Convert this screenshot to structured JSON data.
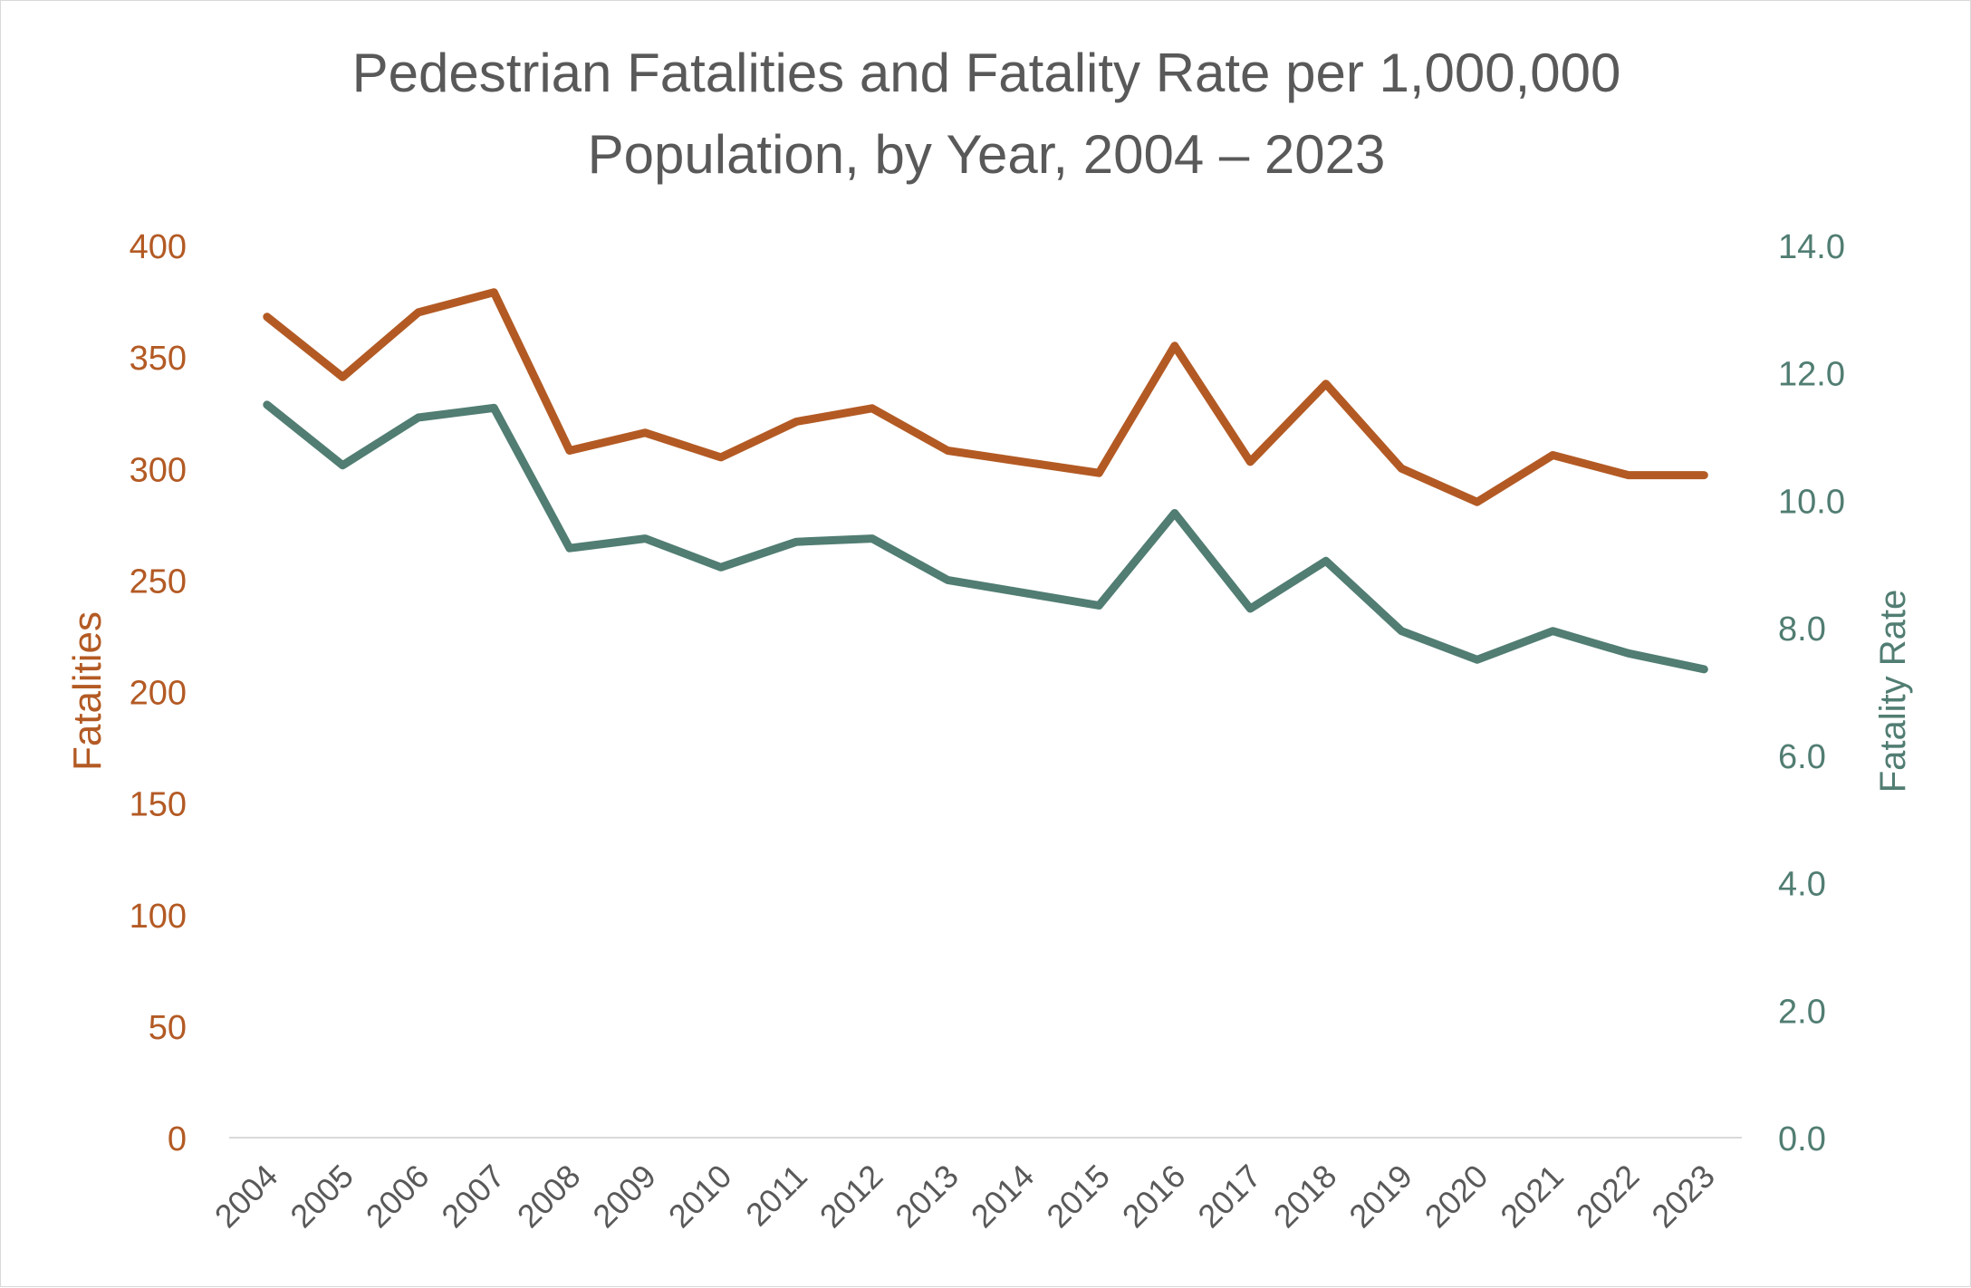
{
  "chart_data": {
    "type": "line",
    "title_lines": [
      "Pedestrian Fatalities and Fatality Rate per 1,000,000",
      "Population, by Year, 2004 – 2023"
    ],
    "categories": [
      "2004",
      "2005",
      "2006",
      "2007",
      "2008",
      "2009",
      "2010",
      "2011",
      "2012",
      "2013",
      "2014",
      "2015",
      "2016",
      "2017",
      "2018",
      "2019",
      "2020",
      "2021",
      "2022",
      "2023"
    ],
    "y_left": {
      "label": "Fatalities",
      "range": [
        0,
        400
      ],
      "ticks": [
        "0",
        "50",
        "100",
        "150",
        "200",
        "250",
        "300",
        "350",
        "400"
      ],
      "color": "#B35A24"
    },
    "y_right": {
      "label": "Fatality Rate",
      "range": [
        0,
        14
      ],
      "ticks": [
        "0.0",
        "2.0",
        "4.0",
        "6.0",
        "8.0",
        "10.0",
        "12.0",
        "14.0"
      ],
      "color": "#517D72"
    },
    "series": [
      {
        "name": "Fatalities",
        "axis": "left",
        "color": "#B35A24",
        "values": [
          368,
          341,
          370,
          379,
          308,
          316,
          305,
          321,
          327,
          308,
          303,
          298,
          355,
          303,
          338,
          300,
          285,
          306,
          297,
          297
        ]
      },
      {
        "name": "Fatality Rate",
        "axis": "right",
        "color": "#517D72",
        "values": [
          11.5,
          10.55,
          11.3,
          11.45,
          9.25,
          9.4,
          8.95,
          9.35,
          9.4,
          8.75,
          8.55,
          8.35,
          9.8,
          8.3,
          9.05,
          7.95,
          7.5,
          7.95,
          7.6,
          7.35
        ]
      }
    ]
  }
}
